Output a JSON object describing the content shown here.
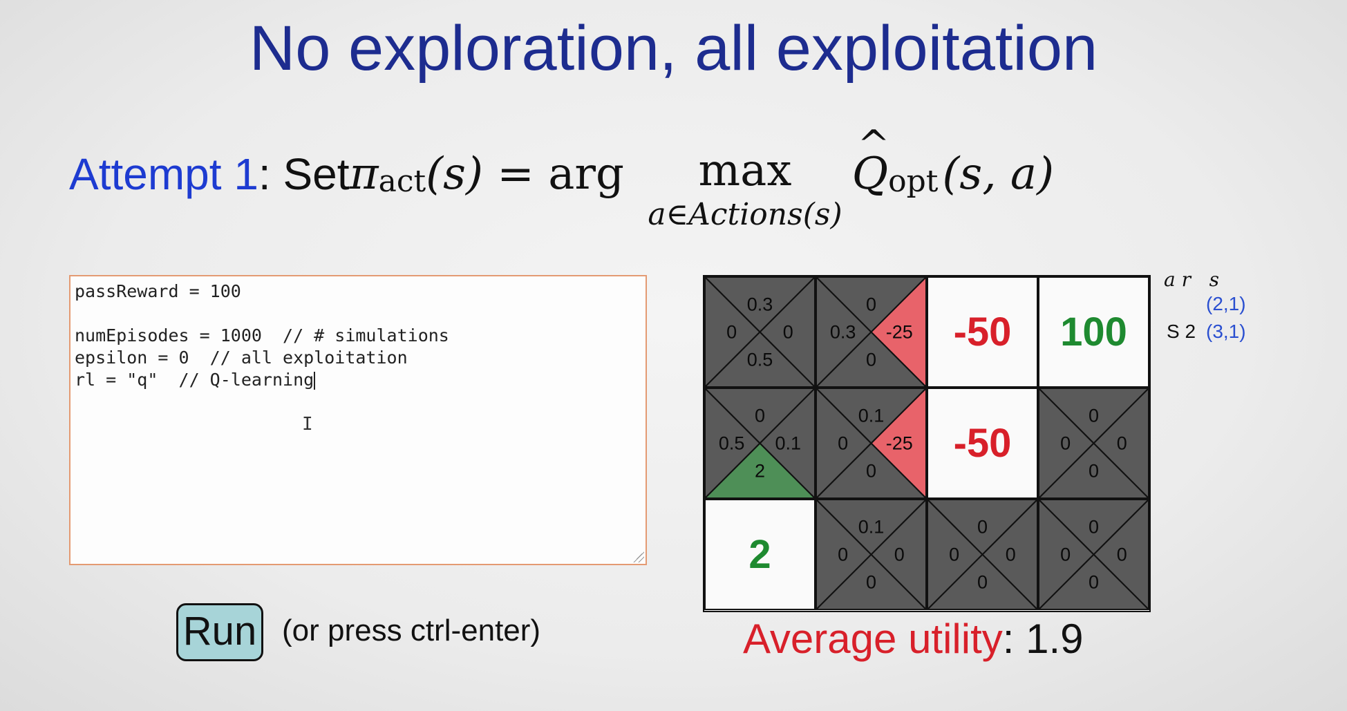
{
  "title": "No exploration, all exploitation",
  "attempt": {
    "label": "Attempt 1",
    "colon_set": ": Set ",
    "pi": "π",
    "pi_sub": "act",
    "pi_arg": "(s)",
    "equals_arg": " = arg ",
    "max": "max",
    "max_under": "a∈Actions(s)",
    "q": "Q",
    "q_hat": "^",
    "q_sub": "opt",
    "q_args": "(s, a)"
  },
  "editor": {
    "lines": [
      "passReward = 100",
      "",
      "numEpisodes = 1000  // # simulations",
      "epsilon = 0  // all exploitation",
      "rl = \"q\"  // Q-learning"
    ]
  },
  "run": {
    "button_label": "Run",
    "hint": "(or press ctrl-enter)"
  },
  "grid": {
    "cells": [
      {
        "type": "q",
        "top": "0.3",
        "left": "0",
        "right": "0",
        "bottom": "0.5",
        "fill": ""
      },
      {
        "type": "q",
        "top": "0",
        "left": "0.3",
        "right": "-25",
        "bottom": "0",
        "fill": "right"
      },
      {
        "type": "value",
        "value": "-50",
        "color": "red"
      },
      {
        "type": "value",
        "value": "100",
        "color": "green"
      },
      {
        "type": "q",
        "top": "0",
        "left": "0.5",
        "right": "0.1",
        "bottom": "2",
        "fill": "bottom"
      },
      {
        "type": "q",
        "top": "0.1",
        "left": "0",
        "right": "-25",
        "bottom": "0",
        "fill": "right"
      },
      {
        "type": "value",
        "value": "-50",
        "color": "red"
      },
      {
        "type": "q",
        "top": "0",
        "left": "0",
        "right": "0",
        "bottom": "0",
        "fill": ""
      },
      {
        "type": "value",
        "value": "2",
        "color": "green"
      },
      {
        "type": "q",
        "top": "0.1",
        "left": "0",
        "right": "0",
        "bottom": "0",
        "fill": ""
      },
      {
        "type": "q",
        "top": "0",
        "left": "0",
        "right": "0",
        "bottom": "0",
        "fill": ""
      },
      {
        "type": "q",
        "top": "0",
        "left": "0",
        "right": "0",
        "bottom": "0",
        "fill": ""
      }
    ]
  },
  "legend": {
    "ar_s": "a r   s",
    "coord1": "(2,1)",
    "s2": "S 2",
    "coord2": "(3,1)"
  },
  "average": {
    "label": "Average utility",
    "value": ": 1.9"
  },
  "colors": {
    "title_blue": "#1d2c8f",
    "attempt_blue": "#1d3bd1",
    "red_cell": "#e8636a",
    "green_cell": "#4e8f57",
    "dark_cell": "#5a5a5a",
    "run_button": "#a7d4d8"
  }
}
